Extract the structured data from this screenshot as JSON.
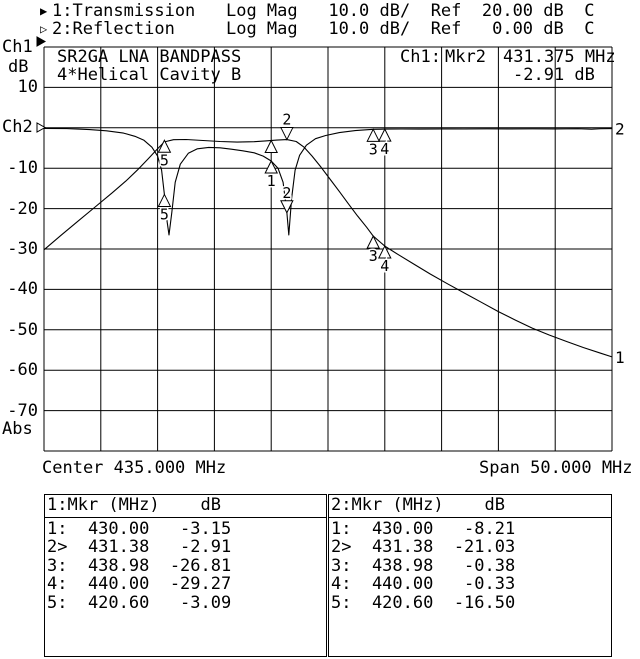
{
  "channels": [
    {
      "marker_prefix": "▶",
      "num": "1:",
      "name": "Transmission",
      "format": "Log Mag",
      "scale": "10.0 dB/",
      "ref_label": "Ref",
      "ref_value": "20.00 dB",
      "cal": "C"
    },
    {
      "marker_prefix": "▷",
      "num": "2:",
      "name": "Reflection",
      "format": "Log Mag",
      "scale": "10.0 dB/",
      "ref_label": "Ref",
      "ref_value": "0.00 dB",
      "cal": "C"
    }
  ],
  "left_axis": {
    "ch1_label": "Ch1",
    "ch1_arrow": "▶",
    "unit": "dB",
    "ch2_label": "Ch2",
    "ch2_arrow": "▷",
    "abs_label": "Abs",
    "ticks": [
      {
        "label": "10",
        "value": 10
      },
      {
        "label": "-10",
        "value": -10
      },
      {
        "label": "-20",
        "value": -20
      },
      {
        "label": "-30",
        "value": -30
      },
      {
        "label": "-40",
        "value": -40
      },
      {
        "label": "-50",
        "value": -50
      },
      {
        "label": "-60",
        "value": -60
      },
      {
        "label": "-70",
        "value": -70
      }
    ]
  },
  "title_line1": "SR2GA LNA BANDPASS",
  "title_line2": "4*Helical Cavity B",
  "readout": {
    "channel": "Ch1:",
    "marker": "Mkr2",
    "freq": "431.375 MHz",
    "value": "-2.91 dB"
  },
  "x_axis": {
    "center": "Center 435.000 MHz",
    "span": "Span 50.000 MHz"
  },
  "chart_data": {
    "type": "line",
    "title": "SR2GA LNA BANDPASS 4*Helical Cavity B",
    "xlabel": "Frequency (MHz), Center 435.000 MHz, Span 50.000 MHz",
    "ylabel": "dB (10 dB/div, Abs)",
    "x_range": [
      410,
      460
    ],
    "y_range": [
      -80,
      20
    ],
    "y_per_div": 10,
    "grid": true,
    "series": [
      {
        "name": "Ch1 Transmission (Ref 20.00 dB)",
        "end_label": "1",
        "points": [
          [
            410,
            -30.2
          ],
          [
            411.5,
            -26.6
          ],
          [
            413,
            -23.1
          ],
          [
            414.5,
            -19.6
          ],
          [
            416,
            -16.1
          ],
          [
            417.2,
            -13.2
          ],
          [
            418.2,
            -10.5
          ],
          [
            419.2,
            -7.6
          ],
          [
            420,
            -5.2
          ],
          [
            420.6,
            -3.5
          ],
          [
            421.4,
            -2.95
          ],
          [
            422.5,
            -2.9
          ],
          [
            424,
            -3.15
          ],
          [
            425.5,
            -3.4
          ],
          [
            427,
            -3.55
          ],
          [
            428.5,
            -3.45
          ],
          [
            429.5,
            -3.25
          ],
          [
            430.5,
            -3.05
          ],
          [
            431.38,
            -2.91
          ],
          [
            432.2,
            -3.4
          ],
          [
            432.9,
            -4.8
          ],
          [
            433.6,
            -7.0
          ],
          [
            434.4,
            -9.8
          ],
          [
            435.2,
            -12.8
          ],
          [
            436,
            -15.8
          ],
          [
            436.8,
            -18.8
          ],
          [
            437.6,
            -21.8
          ],
          [
            438.4,
            -24.6
          ],
          [
            438.98,
            -26.81
          ],
          [
            440,
            -29.27
          ],
          [
            441.2,
            -31.4
          ],
          [
            442.6,
            -33.8
          ],
          [
            444,
            -36.2
          ],
          [
            445.5,
            -38.6
          ],
          [
            447,
            -40.9
          ],
          [
            448.5,
            -43.2
          ],
          [
            450,
            -45.5
          ],
          [
            451.5,
            -47.6
          ],
          [
            453,
            -49.6
          ],
          [
            454.5,
            -51.3
          ],
          [
            456,
            -52.9
          ],
          [
            457.5,
            -54.4
          ],
          [
            459,
            -55.8
          ],
          [
            460,
            -56.7
          ]
        ]
      },
      {
        "name": "Ch2 Reflection (Ref 0.00 dB)",
        "end_label": "2",
        "points": [
          [
            410,
            -0.15
          ],
          [
            412,
            -0.2
          ],
          [
            414,
            -0.45
          ],
          [
            415.5,
            -0.75
          ],
          [
            417,
            -1.3
          ],
          [
            418,
            -2.1
          ],
          [
            418.8,
            -3.1
          ],
          [
            419.5,
            -4.8
          ],
          [
            420,
            -7.0
          ],
          [
            420.35,
            -10.5
          ],
          [
            420.6,
            -16.5
          ],
          [
            420.8,
            -22.5
          ],
          [
            421,
            -26.5
          ],
          [
            421.25,
            -21.0
          ],
          [
            421.55,
            -13.5
          ],
          [
            422,
            -9.0
          ],
          [
            422.7,
            -6.3
          ],
          [
            423.5,
            -5.2
          ],
          [
            424.5,
            -4.85
          ],
          [
            425.5,
            -4.95
          ],
          [
            426.5,
            -5.3
          ],
          [
            427.5,
            -5.7
          ],
          [
            428.5,
            -6.2
          ],
          [
            429.3,
            -7.0
          ],
          [
            430,
            -8.21
          ],
          [
            430.6,
            -10.0
          ],
          [
            431.05,
            -13.5
          ],
          [
            431.38,
            -21.03
          ],
          [
            431.55,
            -26.5
          ],
          [
            431.8,
            -17.5
          ],
          [
            432.1,
            -10.5
          ],
          [
            432.5,
            -6.8
          ],
          [
            433.1,
            -4.3
          ],
          [
            433.9,
            -2.7
          ],
          [
            434.8,
            -1.9
          ],
          [
            436,
            -1.2
          ],
          [
            437.4,
            -0.7
          ],
          [
            438.98,
            -0.38
          ],
          [
            440,
            -0.33
          ],
          [
            441.5,
            -0.3
          ],
          [
            443,
            -0.32
          ],
          [
            445,
            -0.27
          ],
          [
            447,
            -0.3
          ],
          [
            449,
            -0.25
          ],
          [
            451,
            -0.28
          ],
          [
            453,
            -0.24
          ],
          [
            455,
            -0.26
          ],
          [
            457,
            -0.22
          ],
          [
            458.2,
            -0.35
          ],
          [
            459,
            -0.22
          ],
          [
            460,
            -0.2
          ]
        ]
      }
    ],
    "markers": [
      {
        "num": "1",
        "mhz": 430.0,
        "tr1_db": -3.15,
        "tr2_db": -8.21,
        "active": false,
        "tr1_label": false
      },
      {
        "num": "2",
        "mhz": 431.38,
        "tr1_db": -2.91,
        "tr2_db": -21.03,
        "active": true
      },
      {
        "num": "3",
        "mhz": 438.98,
        "tr1_db": -26.81,
        "tr2_db": -0.38,
        "active": false
      },
      {
        "num": "4",
        "mhz": 440.0,
        "tr1_db": -29.27,
        "tr2_db": -0.33,
        "active": false
      },
      {
        "num": "5",
        "mhz": 420.6,
        "tr1_db": -3.09,
        "tr2_db": -16.5,
        "active": false
      }
    ]
  },
  "marker_tables": [
    {
      "header_left": "1:Mkr (MHz)",
      "header_right": "dB",
      "rows": [
        {
          "n": "1:",
          "f": "430.00",
          "v": "-3.15"
        },
        {
          "n": "2>",
          "f": "431.38",
          "v": "-2.91"
        },
        {
          "n": "3:",
          "f": "438.98",
          "v": "-26.81"
        },
        {
          "n": "4:",
          "f": "440.00",
          "v": "-29.27"
        },
        {
          "n": "5:",
          "f": "420.60",
          "v": "-3.09"
        }
      ]
    },
    {
      "header_left": "2:Mkr (MHz)",
      "header_right": "dB",
      "rows": [
        {
          "n": "1:",
          "f": "430.00",
          "v": "-8.21"
        },
        {
          "n": "2>",
          "f": "431.38",
          "v": "-21.03"
        },
        {
          "n": "3:",
          "f": "438.98",
          "v": "-0.38"
        },
        {
          "n": "4:",
          "f": "440.00",
          "v": "-0.33"
        },
        {
          "n": "5:",
          "f": "420.60",
          "v": "-16.50"
        }
      ]
    }
  ]
}
